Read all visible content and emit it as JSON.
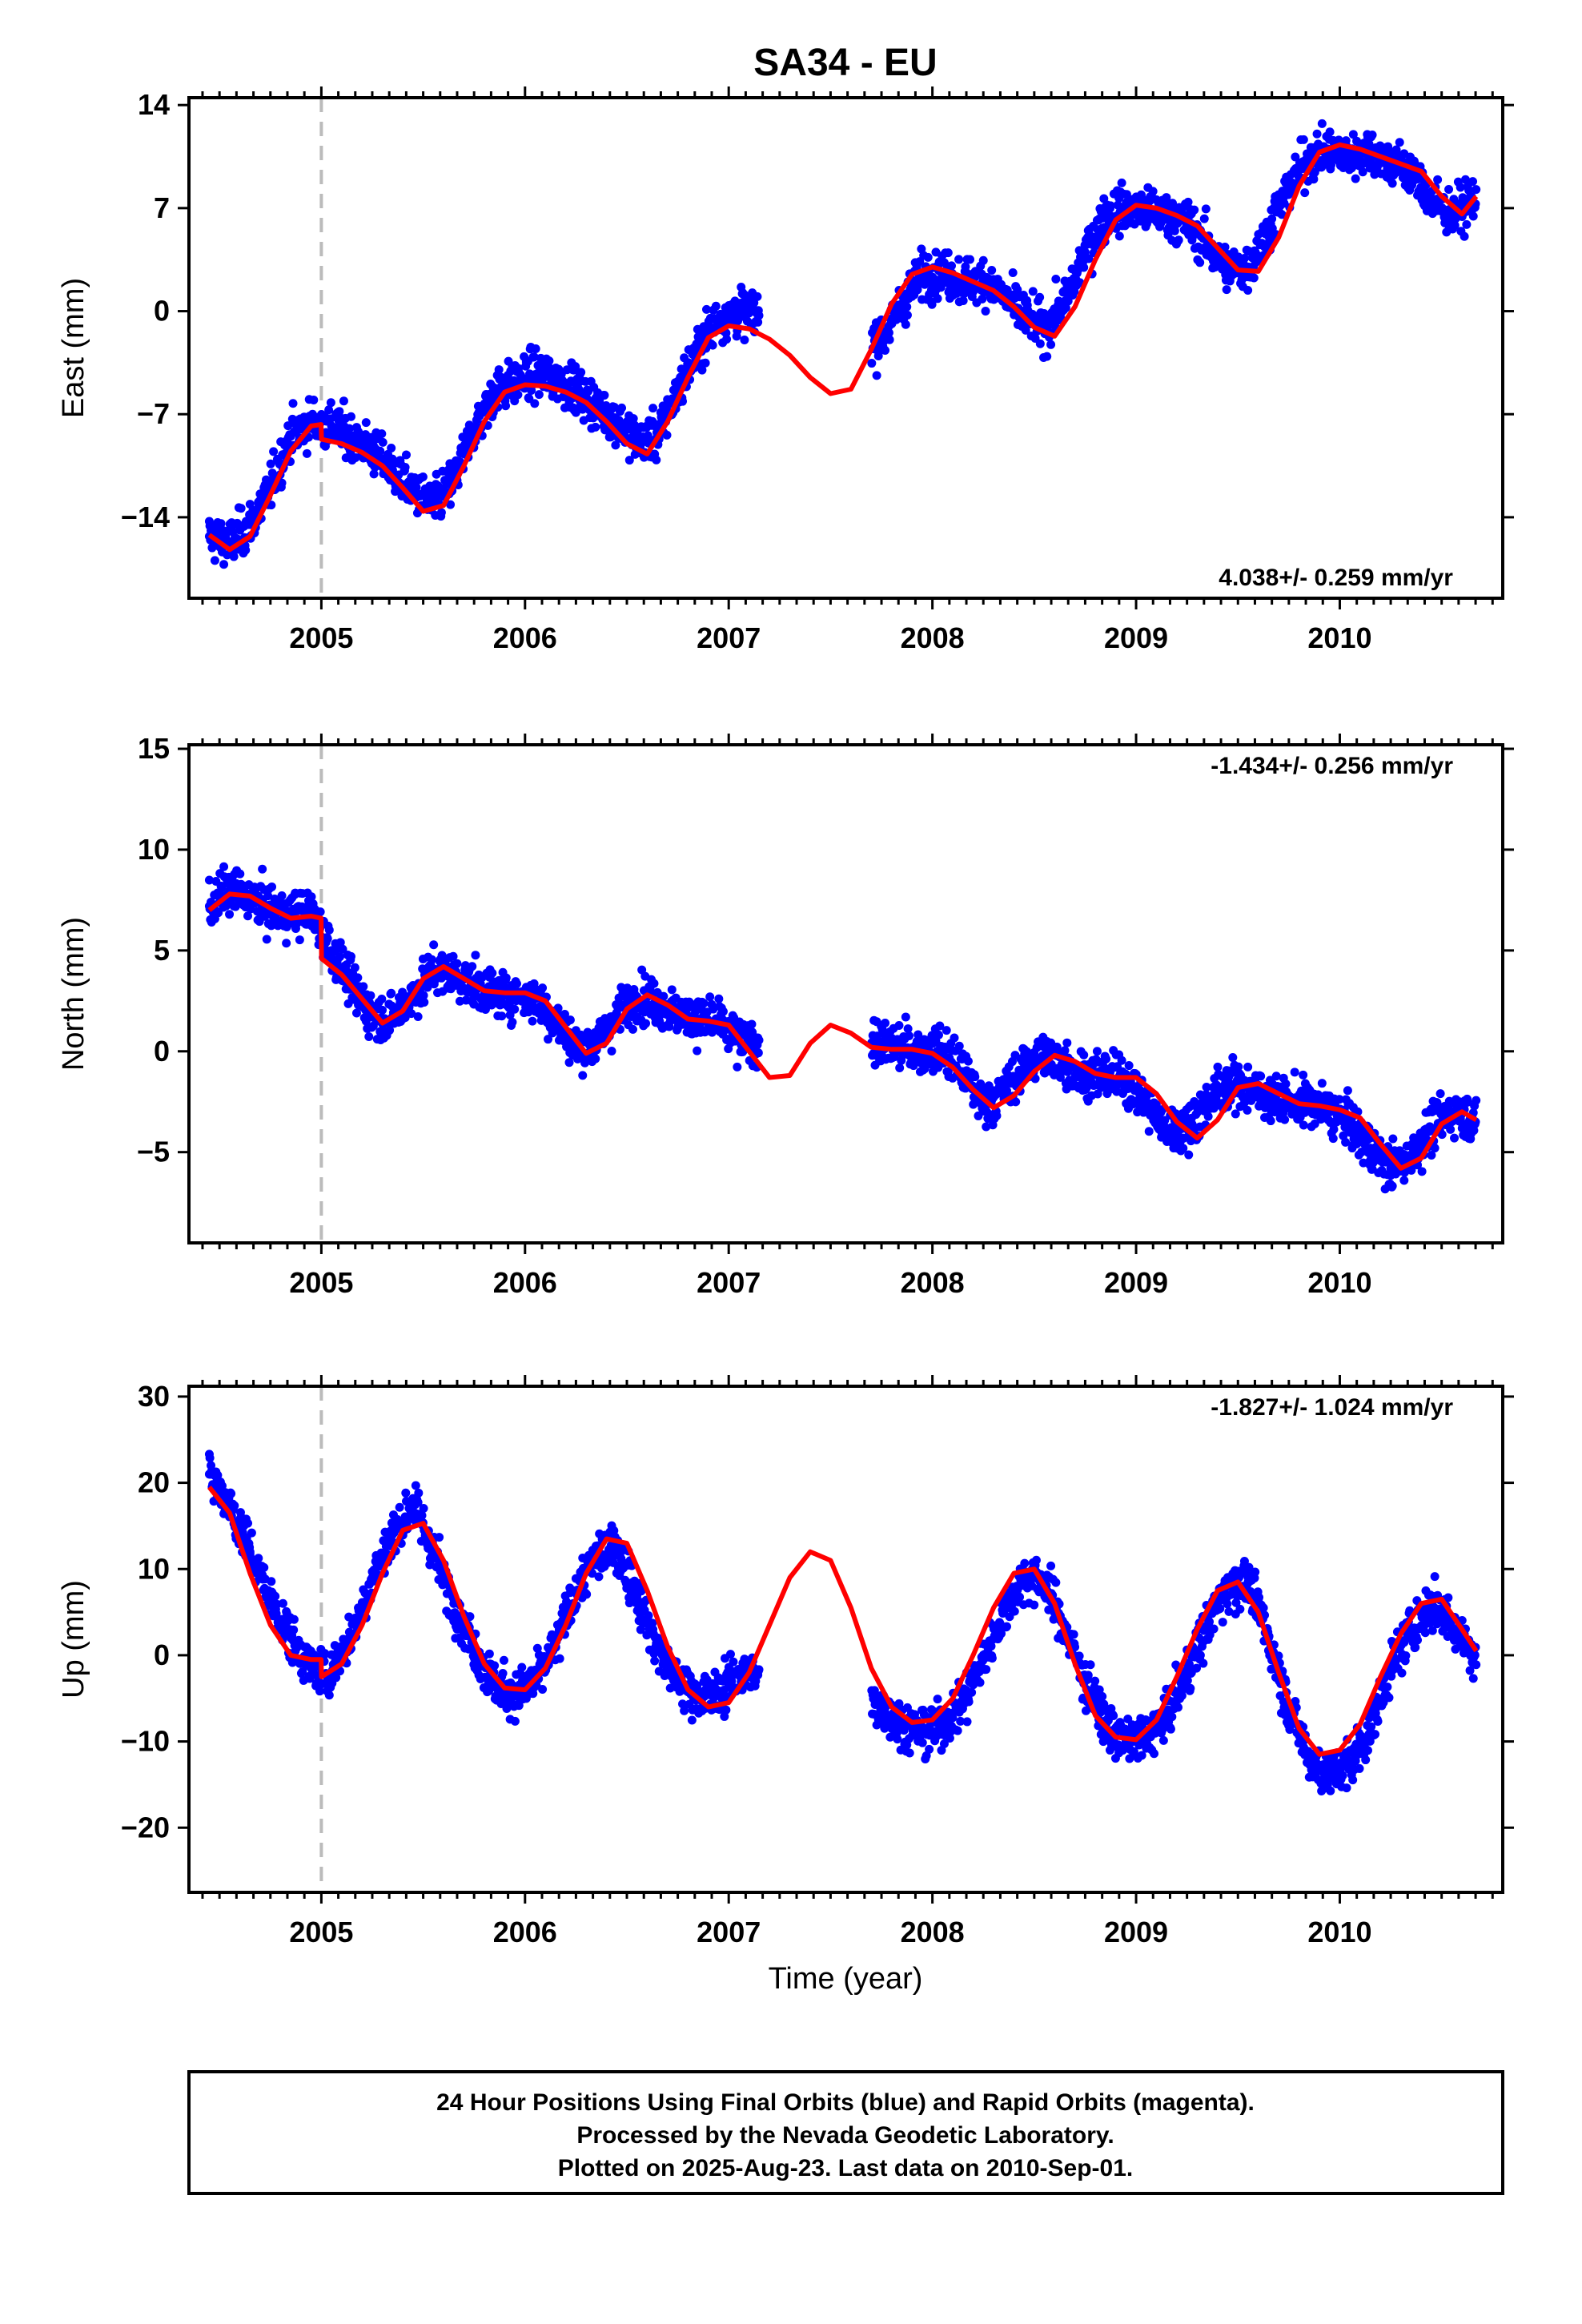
{
  "title": "SA34 - EU",
  "xlabel": "Time (year)",
  "caption": [
    "24 Hour Positions Using Final Orbits (blue) and Rapid Orbits (magenta).",
    "Processed by the Nevada Geodetic Laboratory.",
    "Plotted on 2025-Aug-23. Last data on 2010-Sep-01."
  ],
  "colors": {
    "points": "#0000ff",
    "model": "#ff0000",
    "marker_line": "#bbbbbb",
    "frame": "#000000"
  },
  "chart_data": [
    {
      "type": "scatter",
      "component": "East",
      "ylabel": "East (mm)",
      "rate_text": "4.038+/- 0.259 mm/yr",
      "rate_position": "bottom-right",
      "xlim": [
        2004.35,
        2010.8
      ],
      "ylim": [
        -19.5,
        14.5
      ],
      "yticks": [
        -14,
        -7,
        0,
        7,
        14
      ],
      "yticklabels": [
        "−14",
        "−7",
        "0",
        "7",
        "14"
      ],
      "xticks": [
        2005,
        2006,
        2007,
        2008,
        2009,
        2010
      ],
      "vline": 2005.0,
      "data_gap": [
        2007.15,
        2007.7
      ],
      "series": [
        {
          "kind": "daily_positions",
          "x": [
            2004.45,
            2004.55,
            2004.65,
            2004.75,
            2004.85,
            2004.95,
            2005.05,
            2005.15,
            2005.25,
            2005.35,
            2005.45,
            2005.55,
            2005.65,
            2005.75,
            2005.85,
            2005.95,
            2006.05,
            2006.15,
            2006.25,
            2006.35,
            2006.45,
            2006.55,
            2006.65,
            2006.75,
            2006.85,
            2006.95,
            2007.05,
            2007.75,
            2007.85,
            2007.95,
            2008.05,
            2008.15,
            2008.25,
            2008.35,
            2008.45,
            2008.55,
            2008.65,
            2008.75,
            2008.85,
            2008.95,
            2009.05,
            2009.15,
            2009.25,
            2009.35,
            2009.45,
            2009.55,
            2009.65,
            2009.75,
            2009.85,
            2009.95,
            2010.05,
            2010.15,
            2010.25,
            2010.35,
            2010.45,
            2010.55,
            2010.65
          ],
          "y": [
            -15.3,
            -15.8,
            -14.5,
            -12.0,
            -8.5,
            -7.5,
            -7.8,
            -8.5,
            -9.5,
            -10.8,
            -12.2,
            -13.2,
            -11.5,
            -8.0,
            -5.5,
            -4.8,
            -4.3,
            -4.6,
            -5.3,
            -6.5,
            -7.5,
            -8.8,
            -8.5,
            -5.5,
            -2.5,
            -0.5,
            0.0,
            -2.0,
            0.5,
            2.5,
            2.6,
            2.0,
            2.2,
            1.0,
            -0.3,
            -1.2,
            0.5,
            4.0,
            6.5,
            7.0,
            6.8,
            6.5,
            6.0,
            4.5,
            2.8,
            3.0,
            5.5,
            8.5,
            10.5,
            10.8,
            10.5,
            11.0,
            10.0,
            9.5,
            7.5,
            6.5,
            7.5
          ]
        },
        {
          "kind": "model",
          "x": [
            2004.45,
            2004.55,
            2004.65,
            2004.75,
            2004.85,
            2004.95,
            2004.999,
            2005.001,
            2005.1,
            2005.2,
            2005.3,
            2005.4,
            2005.5,
            2005.6,
            2005.7,
            2005.8,
            2005.9,
            2006.0,
            2006.1,
            2006.2,
            2006.3,
            2006.4,
            2006.5,
            2006.6,
            2006.7,
            2006.8,
            2006.9,
            2007.0,
            2007.1,
            2007.2,
            2007.3,
            2007.4,
            2007.5,
            2007.6,
            2007.7,
            2007.8,
            2007.9,
            2008.0,
            2008.1,
            2008.2,
            2008.3,
            2008.4,
            2008.5,
            2008.6,
            2008.7,
            2008.8,
            2008.9,
            2009.0,
            2009.1,
            2009.2,
            2009.3,
            2009.4,
            2009.5,
            2009.6,
            2009.7,
            2009.8,
            2009.9,
            2010.0,
            2010.1,
            2010.2,
            2010.3,
            2010.4,
            2010.5,
            2010.6,
            2010.67
          ],
          "y": [
            -15.2,
            -16.2,
            -15.3,
            -12.5,
            -9.5,
            -7.8,
            -7.7,
            -8.7,
            -9.0,
            -9.6,
            -10.5,
            -12.0,
            -13.6,
            -13.2,
            -10.5,
            -7.5,
            -5.5,
            -5.0,
            -5.1,
            -5.5,
            -6.2,
            -7.5,
            -9.0,
            -9.7,
            -7.5,
            -4.5,
            -1.8,
            -1.0,
            -1.2,
            -1.9,
            -3.0,
            -4.5,
            -5.6,
            -5.3,
            -2.6,
            0.5,
            2.5,
            3.0,
            2.6,
            2.0,
            1.4,
            0.3,
            -1.1,
            -1.7,
            0.3,
            3.5,
            6.2,
            7.2,
            7.0,
            6.5,
            5.8,
            4.3,
            2.8,
            2.7,
            5.0,
            8.5,
            10.8,
            11.3,
            11.0,
            10.5,
            10.0,
            9.5,
            7.8,
            6.6,
            7.8
          ]
        }
      ]
    },
    {
      "type": "scatter",
      "component": "North",
      "ylabel": "North (mm)",
      "rate_text": "-1.434+/- 0.256 mm/yr",
      "rate_position": "top-right",
      "xlim": [
        2004.35,
        2010.8
      ],
      "ylim": [
        -9.5,
        15.2
      ],
      "yticks": [
        -5,
        0,
        5,
        10,
        15
      ],
      "yticklabels": [
        "−5",
        "0",
        "5",
        "10",
        "15"
      ],
      "xticks": [
        2005,
        2006,
        2007,
        2008,
        2009,
        2010
      ],
      "vline": 2005.0,
      "data_gap": [
        2007.15,
        2007.7
      ],
      "series": [
        {
          "kind": "daily_positions",
          "x": [
            2004.45,
            2004.55,
            2004.65,
            2004.75,
            2004.85,
            2004.95,
            2005.05,
            2005.15,
            2005.25,
            2005.35,
            2005.45,
            2005.55,
            2005.65,
            2005.75,
            2005.85,
            2005.95,
            2006.05,
            2006.15,
            2006.25,
            2006.35,
            2006.45,
            2006.55,
            2006.65,
            2006.75,
            2006.85,
            2006.95,
            2007.05,
            2007.75,
            2007.85,
            2007.95,
            2008.05,
            2008.15,
            2008.25,
            2008.35,
            2008.45,
            2008.55,
            2008.65,
            2008.75,
            2008.85,
            2008.95,
            2009.05,
            2009.15,
            2009.25,
            2009.35,
            2009.45,
            2009.55,
            2009.65,
            2009.75,
            2009.85,
            2009.95,
            2010.05,
            2010.15,
            2010.25,
            2010.35,
            2010.45,
            2010.55,
            2010.65
          ],
          "y": [
            7.2,
            8.0,
            7.6,
            7.0,
            6.8,
            6.9,
            5.0,
            3.2,
            1.8,
            1.6,
            2.8,
            4.0,
            3.8,
            3.2,
            2.9,
            2.8,
            2.6,
            1.5,
            0.2,
            0.4,
            1.8,
            2.7,
            2.4,
            1.8,
            1.6,
            1.4,
            0.5,
            0.3,
            0.2,
            0.0,
            0.0,
            -1.0,
            -2.6,
            -2.0,
            -0.8,
            -0.2,
            -0.6,
            -1.2,
            -1.2,
            -1.4,
            -2.5,
            -4.0,
            -3.8,
            -2.5,
            -1.6,
            -1.8,
            -2.2,
            -2.5,
            -2.6,
            -3.0,
            -3.5,
            -4.8,
            -5.8,
            -5.2,
            -3.8,
            -3.0,
            -3.3
          ]
        },
        {
          "kind": "model",
          "x": [
            2004.45,
            2004.55,
            2004.65,
            2004.75,
            2004.85,
            2004.95,
            2004.999,
            2005.001,
            2005.1,
            2005.2,
            2005.3,
            2005.4,
            2005.5,
            2005.6,
            2005.7,
            2005.8,
            2005.9,
            2006.0,
            2006.1,
            2006.2,
            2006.3,
            2006.4,
            2006.5,
            2006.6,
            2006.7,
            2006.8,
            2006.9,
            2007.0,
            2007.1,
            2007.2,
            2007.3,
            2007.4,
            2007.5,
            2007.6,
            2007.7,
            2007.8,
            2007.9,
            2008.0,
            2008.1,
            2008.2,
            2008.3,
            2008.4,
            2008.5,
            2008.6,
            2008.7,
            2008.8,
            2008.9,
            2009.0,
            2009.1,
            2009.2,
            2009.3,
            2009.4,
            2009.5,
            2009.6,
            2009.7,
            2009.8,
            2009.9,
            2010.0,
            2010.1,
            2010.2,
            2010.3,
            2010.4,
            2010.5,
            2010.6,
            2010.67
          ],
          "y": [
            7.0,
            7.8,
            7.7,
            7.1,
            6.6,
            6.7,
            6.6,
            4.6,
            3.8,
            2.6,
            1.4,
            2.0,
            3.6,
            4.2,
            3.6,
            3.0,
            2.9,
            2.9,
            2.5,
            1.2,
            -0.1,
            0.4,
            2.1,
            2.8,
            2.3,
            1.6,
            1.5,
            1.3,
            0.0,
            -1.3,
            -1.2,
            0.4,
            1.3,
            0.9,
            0.2,
            0.1,
            0.1,
            -0.1,
            -0.8,
            -1.9,
            -2.8,
            -2.2,
            -1.0,
            -0.2,
            -0.5,
            -1.1,
            -1.3,
            -1.3,
            -2.1,
            -3.5,
            -4.3,
            -3.4,
            -1.8,
            -1.6,
            -2.1,
            -2.6,
            -2.7,
            -2.9,
            -3.3,
            -4.6,
            -5.8,
            -5.3,
            -3.6,
            -3.0,
            -3.4
          ]
        }
      ]
    },
    {
      "type": "scatter",
      "component": "Up",
      "ylabel": "Up (mm)",
      "rate_text": "-1.827+/- 1.024 mm/yr",
      "rate_position": "top-right",
      "xlim": [
        2004.35,
        2010.8
      ],
      "ylim": [
        -27.5,
        31.2
      ],
      "yticks": [
        -20,
        -10,
        0,
        10,
        20,
        30
      ],
      "yticklabels": [
        "−20",
        "−10",
        "0",
        "10",
        "20",
        "30"
      ],
      "xticks": [
        2005,
        2006,
        2007,
        2008,
        2009,
        2010
      ],
      "vline": 2005.0,
      "data_gap": [
        2007.15,
        2007.7
      ],
      "series": [
        {
          "kind": "daily_positions",
          "x": [
            2004.45,
            2004.55,
            2004.65,
            2004.75,
            2004.85,
            2004.95,
            2005.05,
            2005.15,
            2005.25,
            2005.35,
            2005.45,
            2005.55,
            2005.65,
            2005.75,
            2005.85,
            2005.95,
            2006.05,
            2006.15,
            2006.25,
            2006.35,
            2006.45,
            2006.55,
            2006.65,
            2006.75,
            2006.85,
            2006.95,
            2007.05,
            2007.75,
            2007.85,
            2007.95,
            2008.05,
            2008.15,
            2008.25,
            2008.35,
            2008.45,
            2008.55,
            2008.65,
            2008.75,
            2008.85,
            2008.95,
            2009.05,
            2009.15,
            2009.25,
            2009.35,
            2009.45,
            2009.55,
            2009.65,
            2009.75,
            2009.85,
            2009.95,
            2010.05,
            2010.15,
            2010.25,
            2010.35,
            2010.45,
            2010.55,
            2010.65
          ],
          "y": [
            21.0,
            17.5,
            12.0,
            6.5,
            2.0,
            -1.5,
            -2.0,
            2.5,
            9.0,
            14.0,
            17.5,
            12.0,
            6.0,
            1.0,
            -3.5,
            -4.5,
            -3.0,
            1.0,
            7.5,
            11.5,
            12.5,
            7.0,
            1.0,
            -3.0,
            -5.0,
            -4.5,
            -2.0,
            -6.0,
            -8.0,
            -9.0,
            -8.0,
            -5.5,
            -0.5,
            5.0,
            9.0,
            8.5,
            3.0,
            -3.0,
            -8.0,
            -10.0,
            -9.5,
            -7.0,
            -2.0,
            3.5,
            8.0,
            8.5,
            2.0,
            -6.0,
            -12.0,
            -14.0,
            -12.5,
            -8.5,
            -1.5,
            3.0,
            6.0,
            4.0,
            0.0
          ]
        },
        {
          "kind": "model",
          "x": [
            2004.45,
            2004.55,
            2004.65,
            2004.75,
            2004.85,
            2004.95,
            2004.999,
            2005.001,
            2005.1,
            2005.2,
            2005.3,
            2005.4,
            2005.5,
            2005.6,
            2005.7,
            2005.8,
            2005.9,
            2006.0,
            2006.1,
            2006.2,
            2006.3,
            2006.4,
            2006.5,
            2006.6,
            2006.7,
            2006.8,
            2006.9,
            2007.0,
            2007.1,
            2007.2,
            2007.3,
            2007.4,
            2007.5,
            2007.6,
            2007.7,
            2007.8,
            2007.9,
            2008.0,
            2008.1,
            2008.2,
            2008.3,
            2008.4,
            2008.5,
            2008.6,
            2008.7,
            2008.8,
            2008.9,
            2009.0,
            2009.1,
            2009.2,
            2009.3,
            2009.4,
            2009.5,
            2009.6,
            2009.7,
            2009.8,
            2009.9,
            2010.0,
            2010.1,
            2010.2,
            2010.3,
            2010.4,
            2010.5,
            2010.6,
            2010.67
          ],
          "y": [
            19.5,
            16.5,
            9.5,
            3.5,
            0.0,
            -0.5,
            -0.5,
            -2.5,
            -1.0,
            3.5,
            9.5,
            14.5,
            15.3,
            11.0,
            4.5,
            -1.0,
            -3.8,
            -4.0,
            -1.5,
            3.5,
            9.5,
            13.5,
            13.0,
            7.5,
            1.0,
            -4.0,
            -6.0,
            -5.5,
            -2.0,
            3.5,
            9.0,
            12.0,
            11.0,
            5.5,
            -1.5,
            -6.0,
            -7.8,
            -7.5,
            -5.0,
            0.0,
            5.5,
            9.5,
            10.0,
            6.0,
            -1.0,
            -7.0,
            -9.5,
            -9.8,
            -7.5,
            -2.5,
            3.0,
            7.5,
            8.5,
            5.0,
            -2.0,
            -8.5,
            -11.5,
            -11.0,
            -8.0,
            -2.5,
            2.5,
            6.0,
            6.5,
            3.0,
            0.5
          ]
        }
      ]
    }
  ]
}
